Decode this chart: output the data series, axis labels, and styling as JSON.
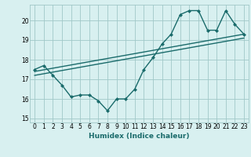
{
  "xlabel": "Humidex (Indice chaleur)",
  "ylabel": "",
  "bg_color": "#d8f0f0",
  "grid_color": "#a0c8c8",
  "line_color": "#1a6b6b",
  "xlim": [
    -0.5,
    23.5
  ],
  "ylim": [
    14.8,
    20.8
  ],
  "xticks": [
    0,
    1,
    2,
    3,
    4,
    5,
    6,
    7,
    8,
    9,
    10,
    11,
    12,
    13,
    14,
    15,
    16,
    17,
    18,
    19,
    20,
    21,
    22,
    23
  ],
  "yticks": [
    15,
    16,
    17,
    18,
    19,
    20
  ],
  "series1": {
    "x": [
      0,
      1,
      2,
      3,
      4,
      5,
      6,
      7,
      8,
      9,
      10,
      11,
      12,
      13,
      14,
      15,
      16,
      17,
      18,
      19,
      20,
      21,
      22,
      23
    ],
    "y": [
      17.5,
      17.7,
      17.2,
      16.7,
      16.1,
      16.2,
      16.2,
      15.9,
      15.4,
      16.0,
      16.0,
      16.5,
      17.5,
      18.1,
      18.8,
      19.3,
      20.3,
      20.5,
      20.5,
      19.5,
      19.5,
      20.5,
      19.8,
      19.3
    ]
  },
  "series2_linear": {
    "x": [
      0,
      23
    ],
    "y": [
      17.4,
      19.3
    ]
  },
  "series3_linear": {
    "x": [
      0,
      23
    ],
    "y": [
      17.2,
      19.1
    ]
  },
  "marker_size": 2.5,
  "linewidth": 1.0,
  "tick_fontsize": 5.5,
  "xlabel_fontsize": 6.5
}
